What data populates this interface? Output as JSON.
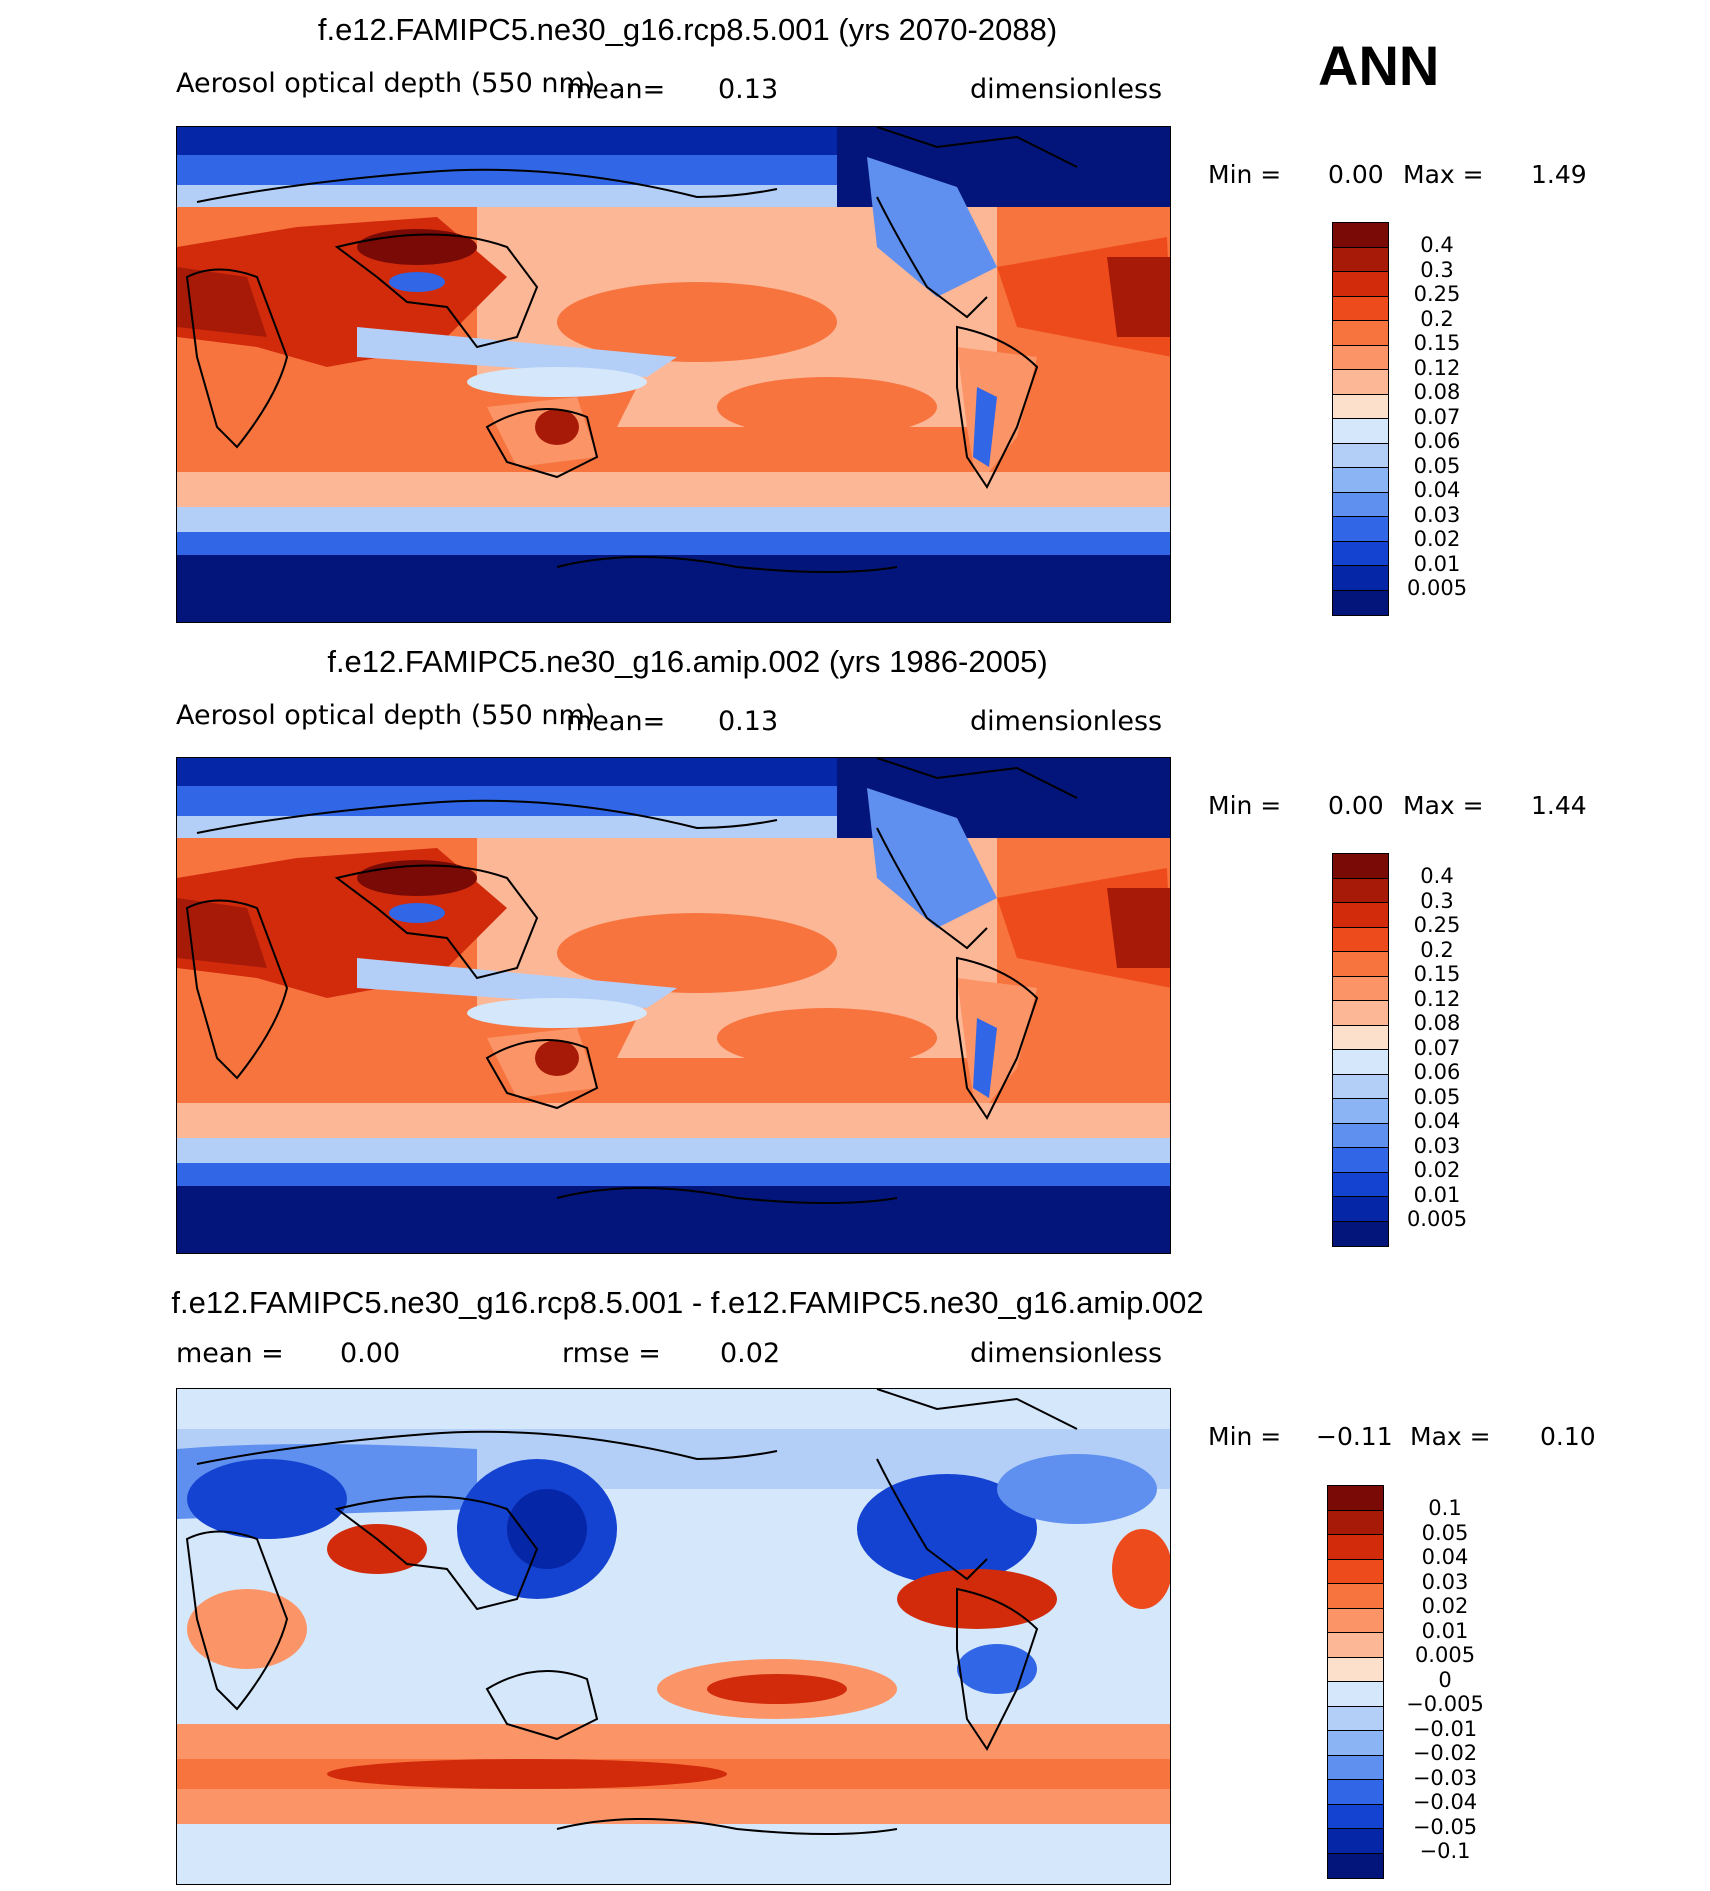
{
  "season": "ANN",
  "panels": [
    {
      "title": "f.e12.FAMIPC5.ne30_g16.rcp8.5.001 (yrs 2070-2088)",
      "variable": "Aerosol optical depth (550 nm)",
      "stat1": "mean=",
      "stat1_value": "0.13",
      "stat2": "",
      "stat2_value": "",
      "units": "dimensionless",
      "min_label": "Min  =",
      "min_value": "0.00",
      "max_label": "Max  =",
      "max_value": "1.49",
      "colorbar_labels": [
        "0.4",
        "0.3",
        "0.25",
        "0.2",
        "0.15",
        "0.12",
        "0.08",
        "0.07",
        "0.06",
        "0.05",
        "0.04",
        "0.03",
        "0.02",
        "0.01",
        "0.005"
      ],
      "colors": [
        "#7a0a05",
        "#a81a08",
        "#d12b0c",
        "#ee4b1c",
        "#f7743f",
        "#fb9467",
        "#fcb797",
        "#fde0cc",
        "#d5e7fa",
        "#b3cff8",
        "#8bb4f5",
        "#5f90f0",
        "#3166e6",
        "#1443d2",
        "#0626a8",
        "#03157a"
      ]
    },
    {
      "title": "f.e12.FAMIPC5.ne30_g16.amip.002 (yrs 1986-2005)",
      "variable": "Aerosol optical depth (550 nm)",
      "stat1": "mean=",
      "stat1_value": "0.13",
      "stat2": "",
      "stat2_value": "",
      "units": "dimensionless",
      "min_label": "Min  =",
      "min_value": "0.00",
      "max_label": "Max  =",
      "max_value": "1.44",
      "colorbar_labels": [
        "0.4",
        "0.3",
        "0.25",
        "0.2",
        "0.15",
        "0.12",
        "0.08",
        "0.07",
        "0.06",
        "0.05",
        "0.04",
        "0.03",
        "0.02",
        "0.01",
        "0.005"
      ],
      "colors": [
        "#7a0a05",
        "#a81a08",
        "#d12b0c",
        "#ee4b1c",
        "#f7743f",
        "#fb9467",
        "#fcb797",
        "#fde0cc",
        "#d5e7fa",
        "#b3cff8",
        "#8bb4f5",
        "#5f90f0",
        "#3166e6",
        "#1443d2",
        "#0626a8",
        "#03157a"
      ]
    },
    {
      "title": "f.e12.FAMIPC5.ne30_g16.rcp8.5.001 - f.e12.FAMIPC5.ne30_g16.amip.002",
      "variable": "",
      "stat1": "mean  =",
      "stat1_value": "0.00",
      "stat2": "rmse  =",
      "stat2_value": "0.02",
      "units": "dimensionless",
      "min_label": "Min  =",
      "min_value": "−0.11",
      "max_label": "Max  =",
      "max_value": "0.10",
      "colorbar_labels": [
        "0.1",
        "0.05",
        "0.04",
        "0.03",
        "0.02",
        "0.01",
        "0.005",
        "0",
        "−0.005",
        "−0.01",
        "−0.02",
        "−0.03",
        "−0.04",
        "−0.05",
        "−0.1"
      ],
      "colors": [
        "#7a0a05",
        "#a81a08",
        "#d12b0c",
        "#ee4b1c",
        "#f7743f",
        "#fb9467",
        "#fcb797",
        "#fde0cc",
        "#d5e7fa",
        "#b3cff8",
        "#8bb4f5",
        "#5f90f0",
        "#3166e6",
        "#1443d2",
        "#0626a8",
        "#03157a"
      ]
    }
  ]
}
